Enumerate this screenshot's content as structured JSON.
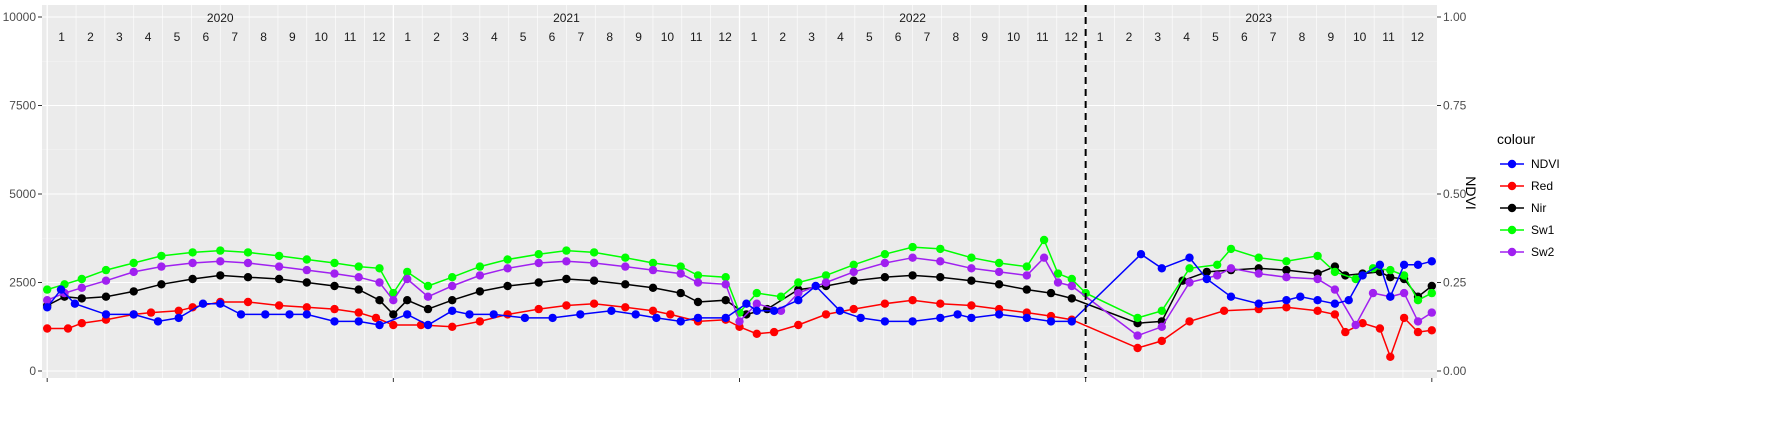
{
  "chart_data": {
    "type": "line",
    "xlabel": "",
    "ylabel": "",
    "y2label": "NDVI",
    "ylim": [
      0,
      10000
    ],
    "y2lim": [
      0,
      1
    ],
    "y_ticks": [
      0,
      2500,
      5000,
      7500,
      10000
    ],
    "y2_ticks": [
      "0.00",
      "0.25",
      "0.50",
      "0.75",
      "1.00"
    ],
    "years": [
      "2020",
      "2021",
      "2022",
      "2023"
    ],
    "months": [
      "1",
      "2",
      "3",
      "4",
      "5",
      "6",
      "7",
      "8",
      "9",
      "10",
      "11",
      "12"
    ],
    "legend": {
      "title": "colour",
      "position": "right"
    },
    "divider_after_year": "2022",
    "grid": true,
    "series": [
      {
        "name": "NDVI",
        "color": "#0000ff",
        "axis": "right",
        "values": [
          [
            2020.0,
            0.18
          ],
          [
            2020.04,
            0.23
          ],
          [
            2020.08,
            0.19
          ],
          [
            2020.17,
            0.16
          ],
          [
            2020.25,
            0.16
          ],
          [
            2020.32,
            0.14
          ],
          [
            2020.38,
            0.15
          ],
          [
            2020.45,
            0.19
          ],
          [
            2020.5,
            0.19
          ],
          [
            2020.56,
            0.16
          ],
          [
            2020.63,
            0.16
          ],
          [
            2020.7,
            0.16
          ],
          [
            2020.75,
            0.16
          ],
          [
            2020.83,
            0.14
          ],
          [
            2020.9,
            0.14
          ],
          [
            2020.96,
            0.13
          ],
          [
            2021.04,
            0.16
          ],
          [
            2021.1,
            0.13
          ],
          [
            2021.17,
            0.17
          ],
          [
            2021.22,
            0.16
          ],
          [
            2021.29,
            0.16
          ],
          [
            2021.38,
            0.15
          ],
          [
            2021.46,
            0.15
          ],
          [
            2021.54,
            0.16
          ],
          [
            2021.63,
            0.17
          ],
          [
            2021.7,
            0.16
          ],
          [
            2021.76,
            0.15
          ],
          [
            2021.83,
            0.14
          ],
          [
            2021.88,
            0.15
          ],
          [
            2021.96,
            0.15
          ],
          [
            2022.02,
            0.19
          ],
          [
            2022.05,
            0.17
          ],
          [
            2022.1,
            0.17
          ],
          [
            2022.17,
            0.2
          ],
          [
            2022.22,
            0.24
          ],
          [
            2022.29,
            0.17
          ],
          [
            2022.35,
            0.15
          ],
          [
            2022.42,
            0.14
          ],
          [
            2022.5,
            0.14
          ],
          [
            2022.58,
            0.15
          ],
          [
            2022.63,
            0.16
          ],
          [
            2022.67,
            0.15
          ],
          [
            2022.75,
            0.16
          ],
          [
            2022.83,
            0.15
          ],
          [
            2022.9,
            0.14
          ],
          [
            2022.96,
            0.14
          ],
          [
            2023.16,
            0.33
          ],
          [
            2023.22,
            0.29
          ],
          [
            2023.3,
            0.32
          ],
          [
            2023.35,
            0.26
          ],
          [
            2023.42,
            0.21
          ],
          [
            2023.5,
            0.19
          ],
          [
            2023.58,
            0.2
          ],
          [
            2023.62,
            0.21
          ],
          [
            2023.67,
            0.2
          ],
          [
            2023.72,
            0.19
          ],
          [
            2023.76,
            0.2
          ],
          [
            2023.8,
            0.27
          ],
          [
            2023.85,
            0.3
          ],
          [
            2023.88,
            0.21
          ],
          [
            2023.92,
            0.3
          ],
          [
            2023.96,
            0.3
          ],
          [
            2024.0,
            0.31
          ]
        ]
      },
      {
        "name": "Red",
        "color": "#ff0000",
        "axis": "left",
        "values": [
          [
            2020.0,
            1200
          ],
          [
            2020.06,
            1200
          ],
          [
            2020.1,
            1350
          ],
          [
            2020.17,
            1450
          ],
          [
            2020.25,
            1600
          ],
          [
            2020.3,
            1650
          ],
          [
            2020.38,
            1700
          ],
          [
            2020.42,
            1800
          ],
          [
            2020.5,
            1950
          ],
          [
            2020.58,
            1950
          ],
          [
            2020.67,
            1850
          ],
          [
            2020.75,
            1800
          ],
          [
            2020.83,
            1750
          ],
          [
            2020.9,
            1650
          ],
          [
            2020.95,
            1500
          ],
          [
            2021.0,
            1300
          ],
          [
            2021.08,
            1300
          ],
          [
            2021.17,
            1250
          ],
          [
            2021.25,
            1400
          ],
          [
            2021.33,
            1600
          ],
          [
            2021.42,
            1750
          ],
          [
            2021.5,
            1850
          ],
          [
            2021.58,
            1900
          ],
          [
            2021.67,
            1800
          ],
          [
            2021.75,
            1700
          ],
          [
            2021.8,
            1600
          ],
          [
            2021.88,
            1400
          ],
          [
            2021.96,
            1450
          ],
          [
            2022.0,
            1250
          ],
          [
            2022.05,
            1050
          ],
          [
            2022.1,
            1100
          ],
          [
            2022.17,
            1300
          ],
          [
            2022.25,
            1600
          ],
          [
            2022.33,
            1750
          ],
          [
            2022.42,
            1900
          ],
          [
            2022.5,
            2000
          ],
          [
            2022.58,
            1900
          ],
          [
            2022.67,
            1850
          ],
          [
            2022.75,
            1750
          ],
          [
            2022.83,
            1650
          ],
          [
            2022.9,
            1550
          ],
          [
            2022.96,
            1450
          ],
          [
            2023.15,
            650
          ],
          [
            2023.22,
            850
          ],
          [
            2023.3,
            1400
          ],
          [
            2023.4,
            1700
          ],
          [
            2023.5,
            1750
          ],
          [
            2023.58,
            1800
          ],
          [
            2023.67,
            1700
          ],
          [
            2023.72,
            1600
          ],
          [
            2023.75,
            1100
          ],
          [
            2023.8,
            1350
          ],
          [
            2023.85,
            1200
          ],
          [
            2023.88,
            400
          ],
          [
            2023.92,
            1500
          ],
          [
            2023.96,
            1100
          ],
          [
            2024.0,
            1150
          ]
        ]
      },
      {
        "name": "Nir",
        "color": "#000000",
        "axis": "left",
        "values": [
          [
            2020.0,
            1850
          ],
          [
            2020.05,
            2100
          ],
          [
            2020.1,
            2050
          ],
          [
            2020.17,
            2100
          ],
          [
            2020.25,
            2250
          ],
          [
            2020.33,
            2450
          ],
          [
            2020.42,
            2600
          ],
          [
            2020.5,
            2700
          ],
          [
            2020.58,
            2650
          ],
          [
            2020.67,
            2600
          ],
          [
            2020.75,
            2500
          ],
          [
            2020.83,
            2400
          ],
          [
            2020.9,
            2300
          ],
          [
            2020.96,
            2000
          ],
          [
            2021.0,
            1600
          ],
          [
            2021.04,
            2000
          ],
          [
            2021.1,
            1750
          ],
          [
            2021.17,
            2000
          ],
          [
            2021.25,
            2250
          ],
          [
            2021.33,
            2400
          ],
          [
            2021.42,
            2500
          ],
          [
            2021.5,
            2600
          ],
          [
            2021.58,
            2550
          ],
          [
            2021.67,
            2450
          ],
          [
            2021.75,
            2350
          ],
          [
            2021.83,
            2200
          ],
          [
            2021.88,
            1950
          ],
          [
            2021.96,
            2000
          ],
          [
            2022.02,
            1600
          ],
          [
            2022.08,
            1750
          ],
          [
            2022.17,
            2300
          ],
          [
            2022.25,
            2400
          ],
          [
            2022.33,
            2550
          ],
          [
            2022.42,
            2650
          ],
          [
            2022.5,
            2700
          ],
          [
            2022.58,
            2650
          ],
          [
            2022.67,
            2550
          ],
          [
            2022.75,
            2450
          ],
          [
            2022.83,
            2300
          ],
          [
            2022.9,
            2200
          ],
          [
            2022.96,
            2050
          ],
          [
            2023.15,
            1350
          ],
          [
            2023.22,
            1400
          ],
          [
            2023.28,
            2550
          ],
          [
            2023.35,
            2800
          ],
          [
            2023.42,
            2850
          ],
          [
            2023.5,
            2900
          ],
          [
            2023.58,
            2850
          ],
          [
            2023.67,
            2750
          ],
          [
            2023.72,
            2950
          ],
          [
            2023.75,
            2700
          ],
          [
            2023.8,
            2750
          ],
          [
            2023.85,
            2800
          ],
          [
            2023.88,
            2650
          ],
          [
            2023.92,
            2600
          ],
          [
            2023.96,
            2100
          ],
          [
            2024.0,
            2400
          ]
        ]
      },
      {
        "name": "Sw1",
        "color": "#00ff00",
        "axis": "left",
        "values": [
          [
            2020.0,
            2300
          ],
          [
            2020.05,
            2450
          ],
          [
            2020.1,
            2600
          ],
          [
            2020.17,
            2850
          ],
          [
            2020.25,
            3050
          ],
          [
            2020.33,
            3250
          ],
          [
            2020.42,
            3350
          ],
          [
            2020.5,
            3400
          ],
          [
            2020.58,
            3350
          ],
          [
            2020.67,
            3250
          ],
          [
            2020.75,
            3150
          ],
          [
            2020.83,
            3050
          ],
          [
            2020.9,
            2950
          ],
          [
            2020.96,
            2900
          ],
          [
            2021.0,
            2200
          ],
          [
            2021.04,
            2800
          ],
          [
            2021.1,
            2400
          ],
          [
            2021.17,
            2650
          ],
          [
            2021.25,
            2950
          ],
          [
            2021.33,
            3150
          ],
          [
            2021.42,
            3300
          ],
          [
            2021.5,
            3400
          ],
          [
            2021.58,
            3350
          ],
          [
            2021.67,
            3200
          ],
          [
            2021.75,
            3050
          ],
          [
            2021.83,
            2950
          ],
          [
            2021.88,
            2700
          ],
          [
            2021.96,
            2650
          ],
          [
            2022.0,
            1650
          ],
          [
            2022.05,
            2200
          ],
          [
            2022.12,
            2100
          ],
          [
            2022.17,
            2500
          ],
          [
            2022.25,
            2700
          ],
          [
            2022.33,
            3000
          ],
          [
            2022.42,
            3300
          ],
          [
            2022.5,
            3500
          ],
          [
            2022.58,
            3450
          ],
          [
            2022.67,
            3200
          ],
          [
            2022.75,
            3050
          ],
          [
            2022.83,
            2950
          ],
          [
            2022.88,
            3700
          ],
          [
            2022.92,
            2750
          ],
          [
            2022.96,
            2600
          ],
          [
            2023.0,
            2200
          ],
          [
            2023.15,
            1500
          ],
          [
            2023.22,
            1700
          ],
          [
            2023.3,
            2900
          ],
          [
            2023.38,
            3000
          ],
          [
            2023.42,
            3450
          ],
          [
            2023.5,
            3200
          ],
          [
            2023.58,
            3100
          ],
          [
            2023.67,
            3250
          ],
          [
            2023.72,
            2800
          ],
          [
            2023.78,
            2600
          ],
          [
            2023.83,
            2900
          ],
          [
            2023.88,
            2850
          ],
          [
            2023.92,
            2700
          ],
          [
            2023.96,
            2000
          ],
          [
            2024.0,
            2200
          ]
        ]
      },
      {
        "name": "Sw2",
        "color": "#a020f0",
        "axis": "left",
        "values": [
          [
            2020.0,
            2000
          ],
          [
            2020.05,
            2200
          ],
          [
            2020.1,
            2350
          ],
          [
            2020.17,
            2550
          ],
          [
            2020.25,
            2800
          ],
          [
            2020.33,
            2950
          ],
          [
            2020.42,
            3050
          ],
          [
            2020.5,
            3100
          ],
          [
            2020.58,
            3050
          ],
          [
            2020.67,
            2950
          ],
          [
            2020.75,
            2850
          ],
          [
            2020.83,
            2750
          ],
          [
            2020.9,
            2650
          ],
          [
            2020.96,
            2500
          ],
          [
            2021.0,
            2000
          ],
          [
            2021.04,
            2600
          ],
          [
            2021.1,
            2100
          ],
          [
            2021.17,
            2400
          ],
          [
            2021.25,
            2700
          ],
          [
            2021.33,
            2900
          ],
          [
            2021.42,
            3050
          ],
          [
            2021.5,
            3100
          ],
          [
            2021.58,
            3050
          ],
          [
            2021.67,
            2950
          ],
          [
            2021.75,
            2850
          ],
          [
            2021.83,
            2750
          ],
          [
            2021.88,
            2500
          ],
          [
            2021.96,
            2450
          ],
          [
            2022.0,
            1400
          ],
          [
            2022.05,
            1900
          ],
          [
            2022.12,
            1700
          ],
          [
            2022.17,
            2200
          ],
          [
            2022.25,
            2500
          ],
          [
            2022.33,
            2800
          ],
          [
            2022.42,
            3050
          ],
          [
            2022.5,
            3200
          ],
          [
            2022.58,
            3100
          ],
          [
            2022.67,
            2900
          ],
          [
            2022.75,
            2800
          ],
          [
            2022.83,
            2700
          ],
          [
            2022.88,
            3200
          ],
          [
            2022.92,
            2500
          ],
          [
            2022.96,
            2400
          ],
          [
            2023.15,
            1000
          ],
          [
            2023.22,
            1250
          ],
          [
            2023.3,
            2500
          ],
          [
            2023.38,
            2700
          ],
          [
            2023.42,
            2900
          ],
          [
            2023.5,
            2750
          ],
          [
            2023.58,
            2650
          ],
          [
            2023.67,
            2600
          ],
          [
            2023.72,
            2300
          ],
          [
            2023.78,
            1300
          ],
          [
            2023.83,
            2200
          ],
          [
            2023.88,
            2100
          ],
          [
            2023.92,
            2200
          ],
          [
            2023.96,
            1400
          ],
          [
            2024.0,
            1650
          ]
        ]
      }
    ]
  }
}
